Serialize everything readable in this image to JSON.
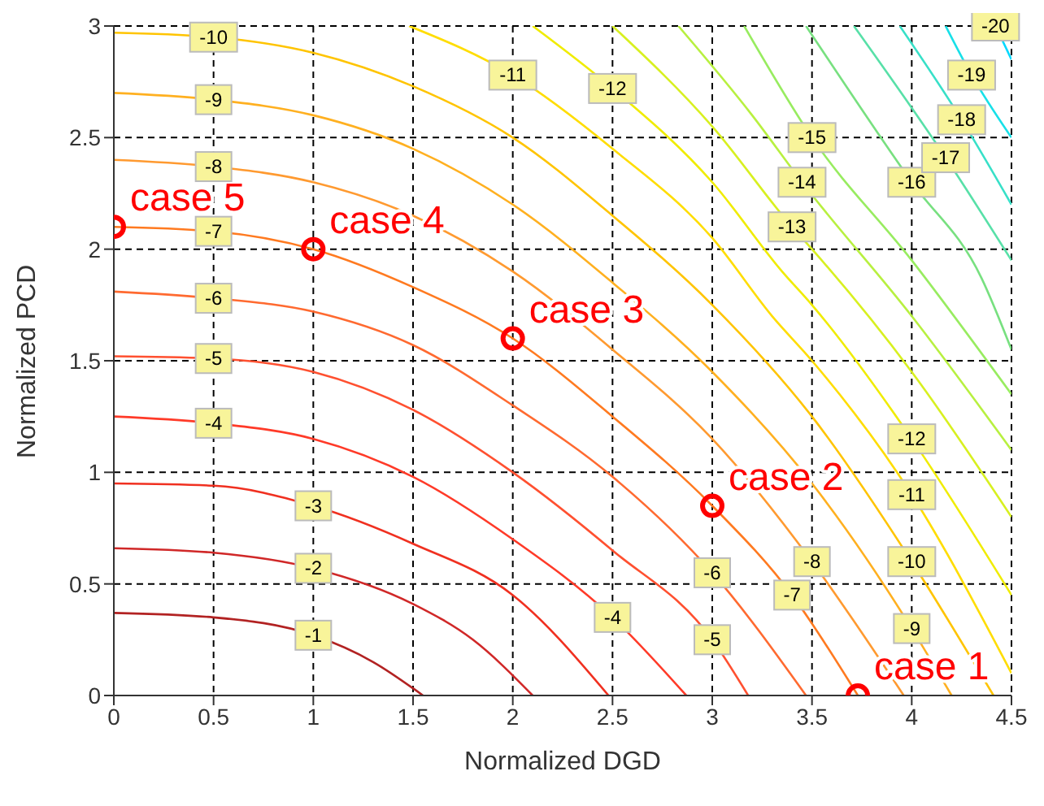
{
  "chart_data": {
    "type": "line",
    "xlabel": "Normalized DGD",
    "ylabel": "Normalized PCD",
    "xlim": [
      0,
      4.5
    ],
    "xticks": [
      0,
      0.5,
      1,
      1.5,
      2,
      2.5,
      3,
      3.5,
      4,
      4.5
    ],
    "ylim": [
      0,
      3
    ],
    "yticks": [
      0,
      0.5,
      1,
      1.5,
      2,
      2.5,
      3
    ],
    "grid": true,
    "legend": false,
    "series": [
      {
        "name": "-1",
        "color": "#b22222",
        "x": [
          0,
          0.5,
          1,
          1.3,
          1.55
        ],
        "values": [
          0.37,
          0.35,
          0.27,
          0.15,
          0
        ]
      },
      {
        "name": "-2",
        "color": "#d02828",
        "x": [
          0,
          0.5,
          1,
          1.5,
          1.8,
          2.1
        ],
        "values": [
          0.66,
          0.64,
          0.57,
          0.41,
          0.25,
          0
        ]
      },
      {
        "name": "-3",
        "color": "#f03020",
        "x": [
          0,
          0.5,
          1,
          1.5,
          2,
          2.48
        ],
        "values": [
          0.95,
          0.94,
          0.85,
          0.68,
          0.45,
          0
        ]
      },
      {
        "name": "-4",
        "color": "#ff3a28",
        "x": [
          0,
          0.5,
          1,
          1.5,
          2,
          2.5,
          2.87
        ],
        "values": [
          1.25,
          1.22,
          1.15,
          0.98,
          0.7,
          0.35,
          0
        ]
      },
      {
        "name": "-5",
        "color": "#ff5030",
        "x": [
          0,
          0.5,
          1,
          1.5,
          2,
          2.5,
          3,
          3.18
        ],
        "values": [
          1.52,
          1.51,
          1.45,
          1.28,
          1.0,
          0.65,
          0.25,
          0
        ]
      },
      {
        "name": "-6",
        "color": "#ff6a30",
        "x": [
          0,
          0.5,
          1,
          1.5,
          2,
          2.5,
          3,
          3.47
        ],
        "values": [
          1.81,
          1.78,
          1.72,
          1.57,
          1.3,
          0.98,
          0.55,
          0
        ]
      },
      {
        "name": "-7",
        "color": "#ff7a20",
        "x": [
          0,
          0.5,
          1,
          1.5,
          2,
          2.5,
          3,
          3.4,
          3.73
        ],
        "values": [
          2.1,
          2.08,
          2.0,
          1.83,
          1.6,
          1.25,
          0.85,
          0.45,
          0
        ]
      },
      {
        "name": "-8",
        "color": "#ff9a30",
        "x": [
          0,
          0.5,
          1,
          1.5,
          2,
          2.5,
          3,
          3.5,
          3.96
        ],
        "values": [
          2.4,
          2.37,
          2.3,
          2.15,
          1.9,
          1.55,
          1.15,
          0.6,
          0
        ]
      },
      {
        "name": "-9",
        "color": "#ffb020",
        "x": [
          0,
          0.5,
          1,
          1.5,
          2,
          2.5,
          3,
          3.5,
          4,
          4.2
        ],
        "values": [
          2.7,
          2.67,
          2.6,
          2.45,
          2.2,
          1.85,
          1.45,
          0.95,
          0.3,
          0
        ]
      },
      {
        "name": "-10",
        "color": "#ffc400",
        "x": [
          0,
          0.5,
          1,
          1.5,
          2,
          2.5,
          3,
          3.5,
          4,
          4.41
        ],
        "values": [
          2.97,
          2.95,
          2.88,
          2.73,
          2.5,
          2.15,
          1.75,
          1.25,
          0.6,
          0
        ]
      },
      {
        "name": "-11",
        "color": "#ffdd00",
        "x": [
          1.48,
          2,
          2.5,
          3,
          3.3,
          3.5,
          4,
          4.5
        ],
        "values": [
          3,
          2.78,
          2.45,
          2.05,
          1.7,
          1.5,
          0.9,
          0.1
        ]
      },
      {
        "name": "-12",
        "color": "#f0ec00",
        "x": [
          2.1,
          2.5,
          3,
          3.35,
          3.5,
          4,
          4.5
        ],
        "values": [
          3,
          2.72,
          2.3,
          1.9,
          1.75,
          1.15,
          0.45
        ]
      },
      {
        "name": "-13",
        "color": "#d8f020",
        "x": [
          2.5,
          3,
          3.4,
          3.5,
          4,
          4.5
        ],
        "values": [
          3,
          2.55,
          2.1,
          2.0,
          1.45,
          0.8
        ]
      },
      {
        "name": "-14",
        "color": "#b8f040",
        "x": [
          2.83,
          3.2,
          3.45,
          4,
          4.5
        ],
        "values": [
          3,
          2.6,
          2.3,
          1.7,
          1.1
        ]
      },
      {
        "name": "-15",
        "color": "#98ec60",
        "x": [
          3.16,
          3.5,
          4,
          4.5
        ],
        "values": [
          3,
          2.5,
          1.95,
          1.35
        ]
      },
      {
        "name": "-16",
        "color": "#78e080",
        "x": [
          3.47,
          4,
          4.35,
          4.5
        ],
        "values": [
          3,
          2.3,
          1.87,
          1.55
        ]
      },
      {
        "name": "-17",
        "color": "#58e0a8",
        "x": [
          3.71,
          4.17,
          4.5
        ],
        "values": [
          3,
          2.41,
          1.95
        ]
      },
      {
        "name": "-18",
        "color": "#38e0c8",
        "x": [
          3.94,
          4.25,
          4.5
        ],
        "values": [
          3,
          2.58,
          2.2
        ]
      },
      {
        "name": "-19",
        "color": "#18e0e8",
        "x": [
          4.17,
          4.3,
          4.5
        ],
        "values": [
          3,
          2.78,
          2.5
        ]
      },
      {
        "name": "-20",
        "color": "#00d8ff",
        "x": [
          4.42,
          4.5
        ],
        "values": [
          3,
          2.85
        ]
      },
      {
        "type": "scatter",
        "color": "#ff0000",
        "marker": "circle",
        "x": [
          3.73,
          3,
          2,
          1,
          0
        ],
        "values": [
          0,
          0.85,
          1.6,
          2.0,
          2.1
        ]
      }
    ],
    "annotations": [
      {
        "text": "case 1",
        "x": 3.73,
        "y": 0
      },
      {
        "text": "case 2",
        "x": 3,
        "y": 0.85
      },
      {
        "text": "case 3",
        "x": 2,
        "y": 1.6
      },
      {
        "text": "case 4",
        "x": 1,
        "y": 2.0
      },
      {
        "text": "case 5",
        "x": 0,
        "y": 2.1
      }
    ]
  }
}
